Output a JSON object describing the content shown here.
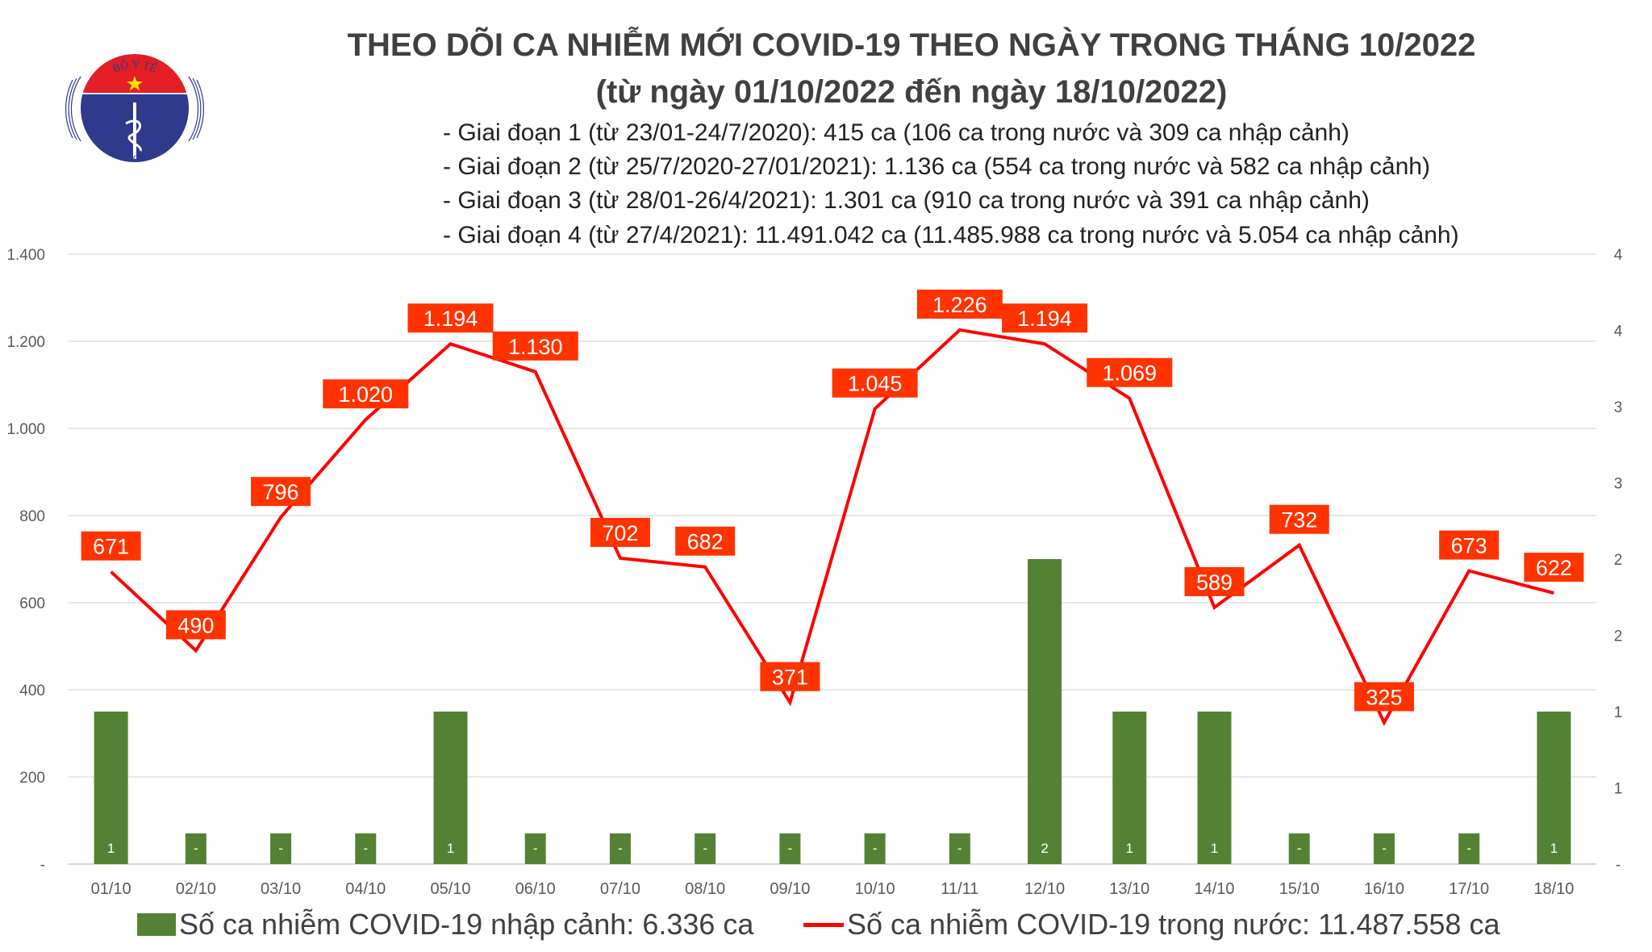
{
  "logo": {
    "top_text": "BỘ Y TẾ",
    "bottom_text": "MINISTRY OF HEALTH"
  },
  "title": "THEO DÕI CA NHIỄM MỚI COVID-19 THEO NGÀY TRONG THÁNG 10/2022",
  "subtitle": "(từ ngày 01/10/2022 đến ngày 18/10/2022)",
  "notes": [
    "- Giai đoạn 1 (từ 23/01-24/7/2020): 415 ca (106 ca trong nước và 309 ca nhập cảnh)",
    "- Giai đoạn 2 (từ 25/7/2020-27/01/2021): 1.136 ca (554 ca trong nước và 582 ca nhập cảnh)",
    "- Giai đoạn 3 (từ 28/01-26/4/2021): 1.301 ca (910 ca trong nước và 391 ca nhập cảnh)",
    "- Giai đoạn 4 (từ 27/4/2021): 11.491.042 ca (11.485.988 ca trong nước và 5.054 ca nhập cảnh)"
  ],
  "chart_data": {
    "type": "bar+line",
    "categories": [
      "01/10",
      "02/10",
      "03/10",
      "04/10",
      "05/10",
      "06/10",
      "07/10",
      "08/10",
      "09/10",
      "10/10",
      "11/11",
      "12/10",
      "13/10",
      "14/10",
      "15/10",
      "16/10",
      "17/10",
      "18/10"
    ],
    "series": [
      {
        "name": "Số ca nhiễm COVID-19 nhập cảnh: 6.336 ca",
        "type": "bar",
        "axis": "right",
        "color": "#548235",
        "values": [
          1,
          0,
          0,
          0,
          1,
          0,
          0,
          0,
          0,
          0,
          0,
          2,
          1,
          1,
          0,
          0,
          0,
          1
        ],
        "labels": [
          "1",
          "-",
          "-",
          "-",
          "1",
          "-",
          "-",
          "-",
          "-",
          "-",
          "-",
          "2",
          "1",
          "1",
          "-",
          "-",
          "-",
          "1"
        ]
      },
      {
        "name": "Số ca nhiễm COVID-19 trong nước: 11.487.558 ca",
        "type": "line",
        "axis": "left",
        "color": "#ff0000",
        "values": [
          671,
          490,
          796,
          1020,
          1194,
          1130,
          702,
          682,
          371,
          1045,
          1226,
          1194,
          1069,
          589,
          732,
          325,
          673,
          622
        ],
        "labels": [
          "671",
          "490",
          "796",
          "1.020",
          "1.194",
          "1.130",
          "702",
          "682",
          "371",
          "1.045",
          "1.226",
          "1.194",
          "1.069",
          "589",
          "732",
          "325",
          "673",
          "622"
        ]
      }
    ],
    "y_left": {
      "ylim": [
        0,
        1400
      ],
      "ticks": [
        "-",
        "200",
        "400",
        "600",
        "800",
        "1.000",
        "1.200",
        "1.400"
      ]
    },
    "y_right": {
      "ylim": [
        0,
        4
      ],
      "ticks": [
        "-",
        "1",
        "1",
        "2",
        "2",
        "3",
        "3",
        "4",
        "4"
      ]
    },
    "label_color": "#ff3300",
    "grid": true,
    "legend": "bottom"
  }
}
